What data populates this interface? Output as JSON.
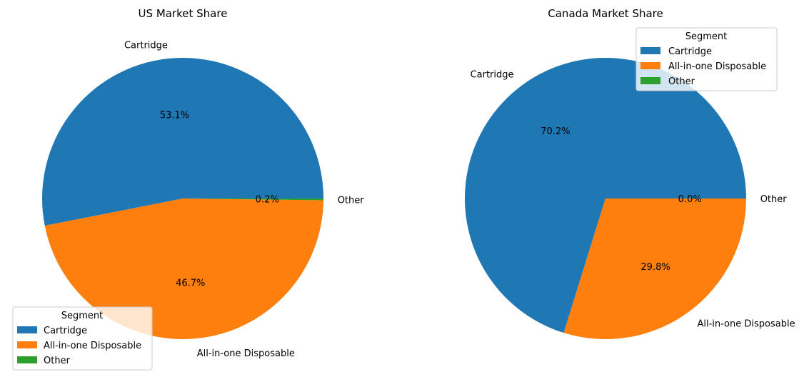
{
  "legend_title": "Segment",
  "colors": [
    "#1f77b4",
    "#ff7f0e",
    "#2ca02c"
  ],
  "chart_data": [
    {
      "type": "pie",
      "title": "US Market Share",
      "labels": [
        "Cartridge",
        "All-in-one Disposable",
        "Other"
      ],
      "values": [
        53.1,
        46.7,
        0.2
      ],
      "percent_labels": [
        "53.1%",
        "46.7%",
        "0.2%"
      ],
      "legend_placement": "lower-left"
    },
    {
      "type": "pie",
      "title": "Canada Market Share",
      "labels": [
        "Cartridge",
        "All-in-one Disposable",
        "Other"
      ],
      "values": [
        70.2,
        29.8,
        0.0
      ],
      "percent_labels": [
        "70.2%",
        "29.8%",
        "0.0%"
      ],
      "legend_placement": "upper-right"
    }
  ]
}
